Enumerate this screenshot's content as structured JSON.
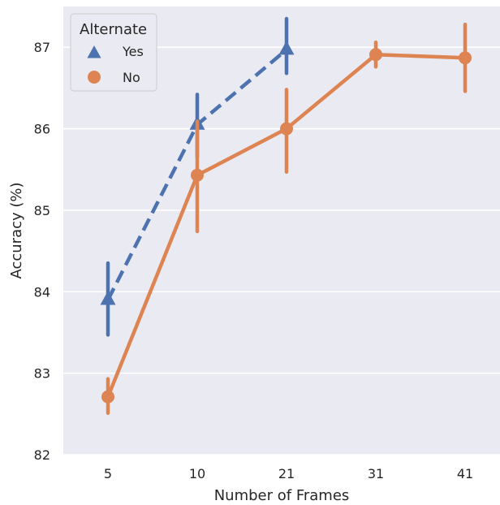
{
  "chart_data": {
    "type": "line",
    "xlabel": "Number of Frames",
    "ylabel": "Accuracy (%)",
    "categories": [
      "5",
      "10",
      "21",
      "31",
      "41"
    ],
    "ylim": [
      82,
      87.5
    ],
    "yticks": [
      82,
      83,
      84,
      85,
      86,
      87
    ],
    "grid": true,
    "legend": {
      "title": "Alternate",
      "placement": "top-left"
    },
    "series": [
      {
        "name": "Yes",
        "color": "#4c72b0",
        "marker": "triangle",
        "linestyle": "dashed",
        "points": [
          {
            "x": "5",
            "y": 83.9,
            "ci": [
              83.47,
              84.35
            ]
          },
          {
            "x": "10",
            "y": 86.05,
            "ci": [
              85.65,
              86.42
            ]
          },
          {
            "x": "21",
            "y": 86.97,
            "ci": [
              86.68,
              87.35
            ]
          }
        ]
      },
      {
        "name": "No",
        "color": "#dd8452",
        "marker": "circle",
        "linestyle": "solid",
        "points": [
          {
            "x": "5",
            "y": 82.71,
            "ci": [
              82.51,
              82.93
            ]
          },
          {
            "x": "10",
            "y": 85.43,
            "ci": [
              84.74,
              86.09
            ]
          },
          {
            "x": "21",
            "y": 86.0,
            "ci": [
              85.47,
              86.48
            ]
          },
          {
            "x": "31",
            "y": 86.91,
            "ci": [
              86.76,
              87.06
            ]
          },
          {
            "x": "41",
            "y": 86.87,
            "ci": [
              86.46,
              87.28
            ]
          }
        ]
      }
    ]
  }
}
